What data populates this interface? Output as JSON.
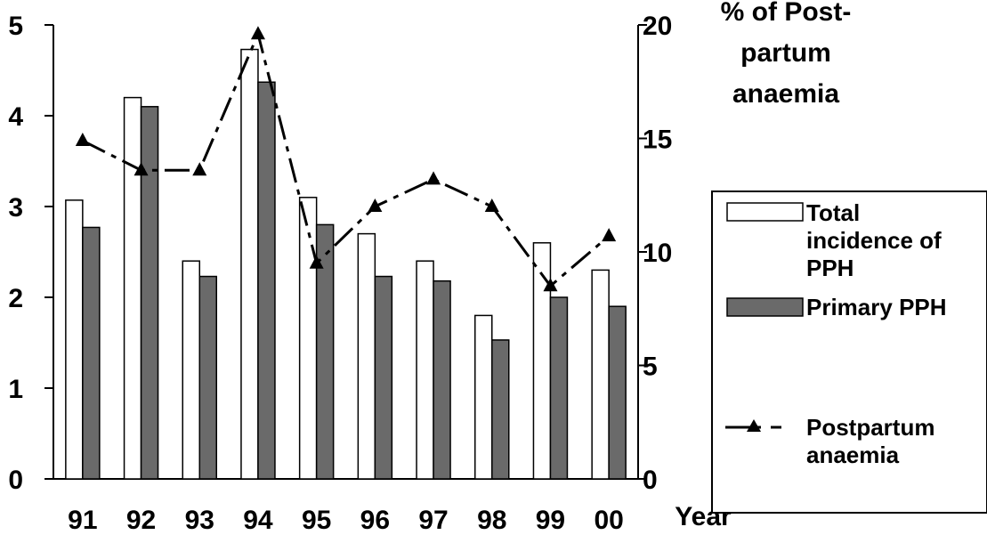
{
  "chart_data": {
    "type": "bar",
    "categories": [
      "91",
      "92",
      "93",
      "94",
      "95",
      "96",
      "97",
      "98",
      "99",
      "00"
    ],
    "xlabel": "Year",
    "y_left": {
      "ylim": [
        0,
        5
      ],
      "ticks": [
        "0",
        "1",
        "2",
        "3",
        "4",
        "5"
      ]
    },
    "y_right": {
      "ylabel_lines": [
        "% of Post-",
        "partum",
        "anaemia"
      ],
      "ylim": [
        0,
        20
      ],
      "ticks": [
        "0",
        "5",
        "10",
        "15",
        "20"
      ]
    },
    "series": [
      {
        "name_lines": [
          "Total",
          "incidence of",
          "PPH"
        ],
        "type": "bar",
        "axis": "left",
        "color": "#ffffff",
        "values": [
          3.07,
          4.2,
          2.4,
          4.73,
          3.1,
          2.7,
          2.4,
          1.8,
          2.6,
          2.3
        ]
      },
      {
        "name_lines": [
          "Primary PPH"
        ],
        "type": "bar",
        "axis": "left",
        "color": "#6a6a6a",
        "values": [
          2.77,
          4.1,
          2.23,
          4.37,
          2.8,
          2.23,
          2.18,
          1.53,
          2.0,
          1.9
        ]
      },
      {
        "name_lines": [
          "Postpartum",
          "anaemia"
        ],
        "type": "line",
        "axis": "right",
        "color": "#000000",
        "marker": "triangle",
        "line_style": "dash-dot",
        "values": [
          14.9,
          13.6,
          13.6,
          19.6,
          9.5,
          12.0,
          13.2,
          12.0,
          8.5,
          10.7
        ]
      }
    ],
    "legend_position": "right",
    "grid": false
  }
}
